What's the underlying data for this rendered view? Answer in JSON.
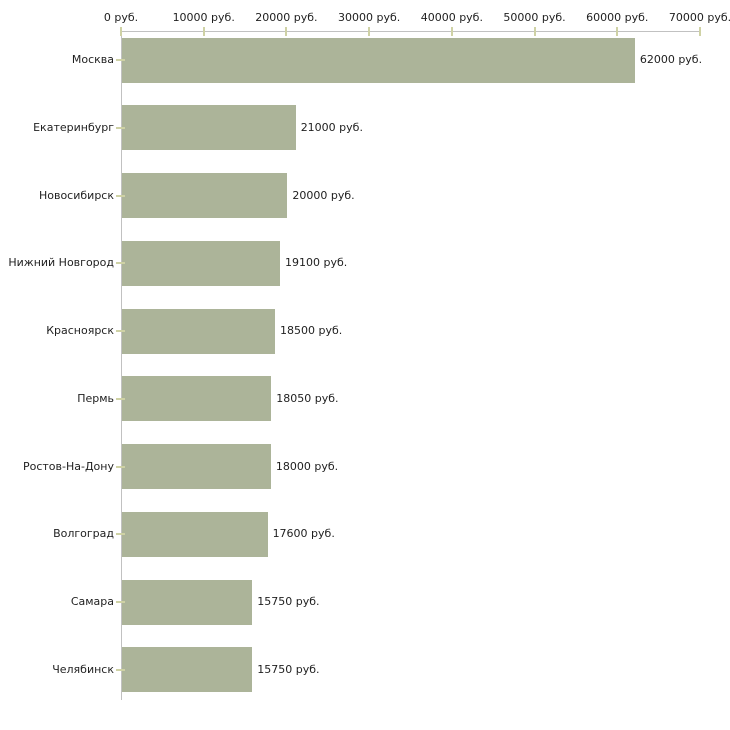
{
  "chart_data": {
    "type": "bar",
    "orientation": "horizontal",
    "title": "",
    "xlabel": "",
    "ylabel": "",
    "categories": [
      "Москва",
      "Екатеринбург",
      "Новосибирск",
      "Нижний Новгород",
      "Красноярск",
      "Пермь",
      "Ростов-На-Дону",
      "Волгоград",
      "Самара",
      "Челябинск"
    ],
    "values": [
      62000,
      21000,
      20000,
      19100,
      18500,
      18050,
      18000,
      17600,
      15750,
      15750
    ],
    "value_labels": [
      "62000 руб.",
      "21000 руб.",
      "20000 руб.",
      "19100 руб.",
      "18500 руб.",
      "18050 руб.",
      "18000 руб.",
      "17600 руб.",
      "15750 руб.",
      "15750 руб."
    ],
    "x_ticks": [
      0,
      10000,
      20000,
      30000,
      40000,
      50000,
      60000,
      70000
    ],
    "x_tick_labels": [
      "0 руб.",
      "10000 руб.",
      "20000 руб.",
      "30000 руб.",
      "40000 руб.",
      "50000 руб.",
      "60000 руб.",
      "70000 руб."
    ],
    "xlim": [
      0,
      70000
    ],
    "grid": false,
    "legend": "none",
    "unit": "руб.",
    "colors": {
      "bar": "#acb499",
      "axis": "#c1c1c1",
      "tick": "#cfd2a5",
      "text": "#1f1f1f",
      "background": "#ffffff"
    }
  }
}
